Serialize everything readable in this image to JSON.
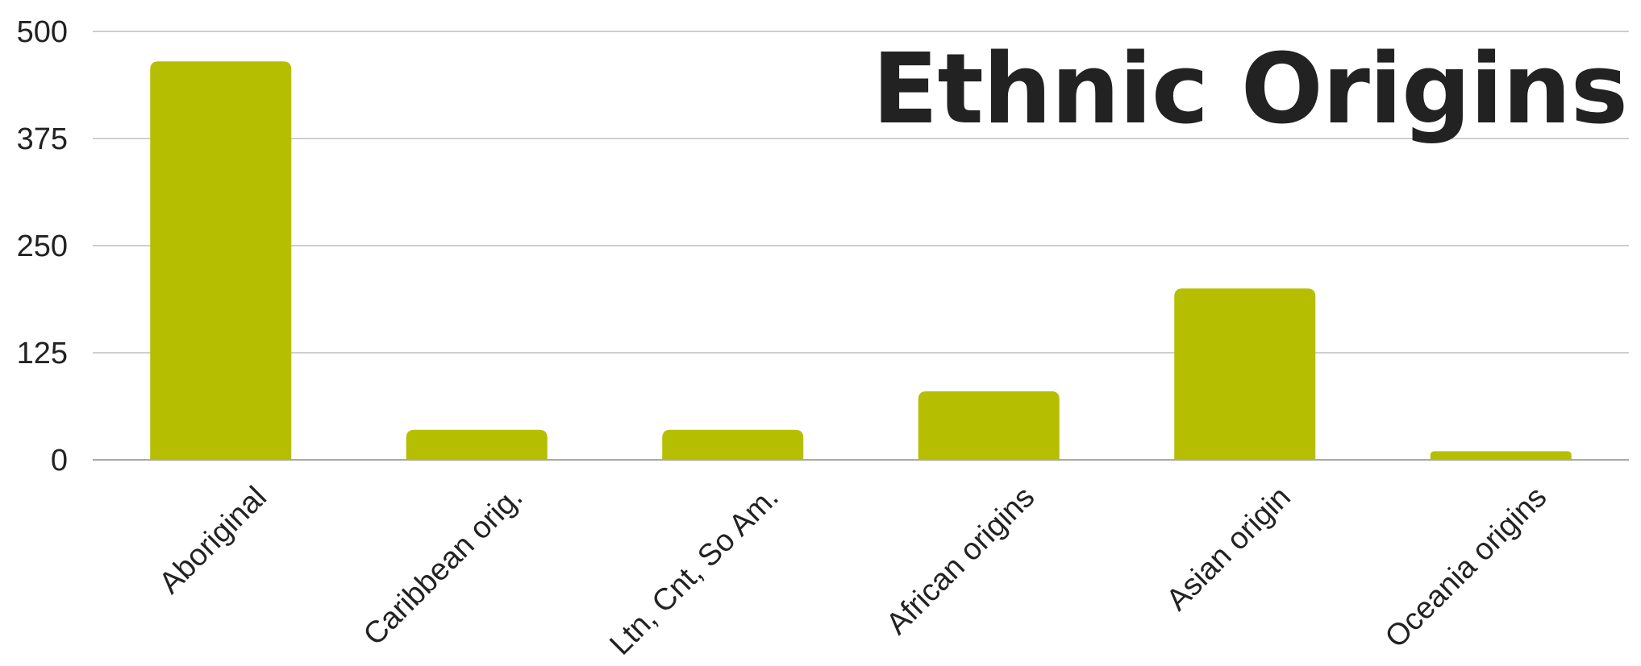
{
  "chart_data": {
    "type": "bar",
    "title": "Ethnic Origins",
    "xlabel": "",
    "ylabel": "",
    "categories": [
      "Aboriginal",
      "Caribbean orig.",
      "Ltn, Cnt, So Am.",
      "African origins",
      "Asian origin",
      "Oceania origins"
    ],
    "values": [
      465,
      35,
      35,
      80,
      200,
      10
    ],
    "ylim": [
      0,
      500
    ],
    "yticks": [
      "0",
      "125",
      "250",
      "375",
      "500"
    ],
    "grid": true,
    "legend": "none",
    "bar_color": "#b5be00"
  }
}
